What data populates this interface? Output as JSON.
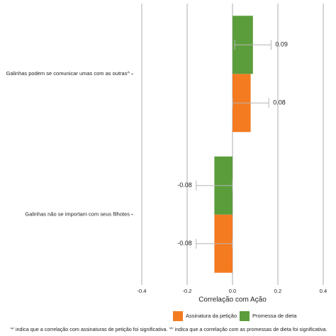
{
  "chart_data": {
    "type": "hbar",
    "categories": [
      "Galinhas podem se comunicar umas com as outras^",
      "Galinhas não se importam com seus filhotes"
    ],
    "series": [
      {
        "name": "Assinatura da petição",
        "color": "#f47b20",
        "values": [
          0.08,
          -0.08
        ],
        "errors": [
          0.08,
          0.08
        ]
      },
      {
        "name": "Promessa de dieta",
        "color": "#5b9d3b",
        "values": [
          0.09,
          -0.08
        ],
        "errors": [
          0.08,
          0.08
        ]
      }
    ],
    "xlim": [
      -0.4,
      0.4
    ],
    "xticks": [
      -0.4,
      -0.2,
      {
        "value": 0,
        "label": "0.0"
      },
      0.2,
      0.4
    ],
    "xlabel": "Correlação com Ação",
    "grid": true,
    "legend": "bottom",
    "footnote": "'*' indica que a correlação com assinaturas de petição foi significativa. '^' indica que a correlação com as promessas de dieta foi significativa."
  }
}
